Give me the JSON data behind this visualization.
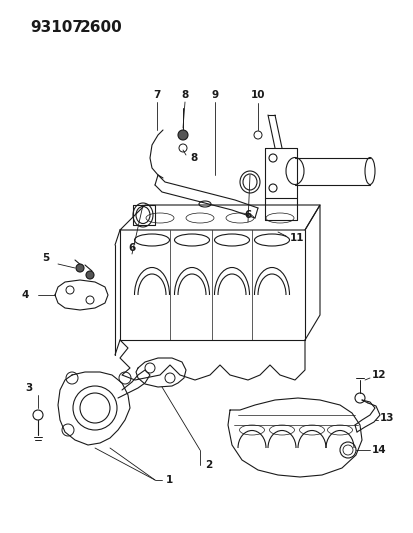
{
  "title_part1": "93107",
  "title_part2": "2600",
  "background_color": "#ffffff",
  "line_color": "#1a1a1a",
  "figsize": [
    4.14,
    5.33
  ],
  "dpi": 100,
  "label_fontsize": 7.5,
  "title_fontsize": 11
}
